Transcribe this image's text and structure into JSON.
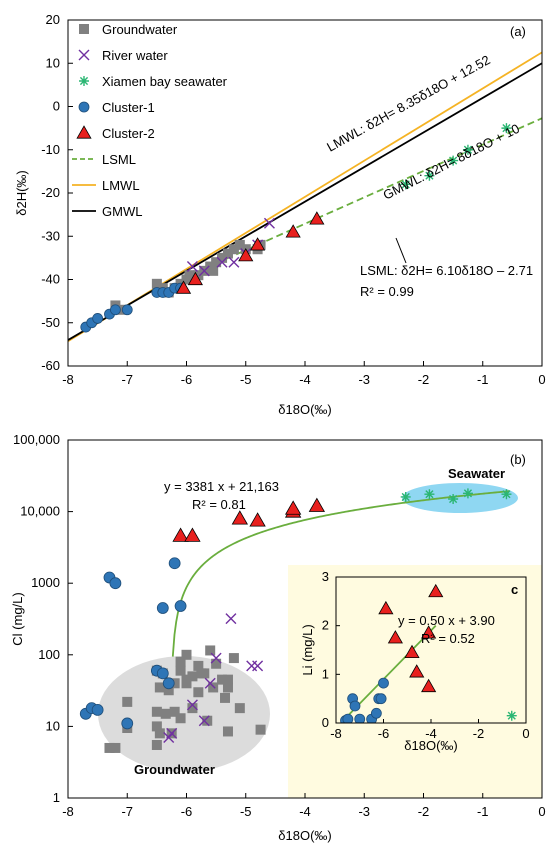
{
  "chart_data": [
    {
      "type": "scatter",
      "panel_label": "(a)",
      "xlabel": "δ18O(‰)",
      "ylabel": "δ2H(‰)",
      "xlim": [
        -8,
        0
      ],
      "ylim": [
        -60,
        20
      ],
      "xticks": [
        "-8",
        "-7",
        "-6",
        "-5",
        "-4",
        "-3",
        "-2",
        "-1",
        "0"
      ],
      "yticks": [
        "-60",
        "-50",
        "-40",
        "-30",
        "-20",
        "-10",
        "0",
        "10",
        "20"
      ],
      "legend_position": "top-left",
      "legend": [
        {
          "name": "Groundwater",
          "marker": "square",
          "color": "#808080"
        },
        {
          "name": "River water",
          "marker": "x",
          "color": "#7030A0"
        },
        {
          "name": "Xiamen bay seawater",
          "marker": "star",
          "color": "#2BB673"
        },
        {
          "name": "Cluster-1",
          "marker": "circle",
          "color": "#2E75B6"
        },
        {
          "name": "Cluster-2",
          "marker": "triangle",
          "color": "#E8201E"
        },
        {
          "name": "LSML",
          "line": "dashed",
          "color": "#6AAE3E"
        },
        {
          "name": "LMWL",
          "line": "solid",
          "color": "#F5B324"
        },
        {
          "name": "GMWL",
          "line": "solid",
          "color": "#000000"
        }
      ],
      "lines": [
        {
          "name": "LMWL",
          "slope": 8.35,
          "intercept": 12.52,
          "x_range": [
            -8,
            0
          ],
          "color": "#F5B324"
        },
        {
          "name": "GMWL",
          "slope": 8,
          "intercept": 10,
          "x_range": [
            -8,
            0
          ],
          "color": "#000000"
        },
        {
          "name": "LSML",
          "slope": 6.1,
          "intercept": -2.71,
          "x_range": [
            -5.5,
            0
          ],
          "color": "#6AAE3E"
        }
      ],
      "annotations": {
        "lmwl": "LMWL: δ2H= 8.35δ18O + 12.52",
        "gmwl": "GMWL: δ2H= 8δ18O + 10",
        "lsml": "LSML: δ2H= 6.10δ18O – 2.71",
        "lsml_r2": "R² = 0.99"
      },
      "series": [
        {
          "name": "Groundwater",
          "points": [
            [
              -7.2,
              -46
            ],
            [
              -7.1,
              -47
            ],
            [
              -6.5,
              -41
            ],
            [
              -6.4,
              -42
            ],
            [
              -6.3,
              -43
            ],
            [
              -6.2,
              -42
            ],
            [
              -6.1,
              -41
            ],
            [
              -6.0,
              -40
            ],
            [
              -5.95,
              -39
            ],
            [
              -5.9,
              -40
            ],
            [
              -5.8,
              -39
            ],
            [
              -5.7,
              -38
            ],
            [
              -5.6,
              -37
            ],
            [
              -5.55,
              -38
            ],
            [
              -5.5,
              -36
            ],
            [
              -5.4,
              -35
            ],
            [
              -5.3,
              -34
            ],
            [
              -5.2,
              -33
            ],
            [
              -5.1,
              -32
            ],
            [
              -5.0,
              -33
            ],
            [
              -4.8,
              -33
            ],
            [
              -4.75,
              -32
            ]
          ]
        },
        {
          "name": "River water",
          "points": [
            [
              -5.9,
              -37
            ],
            [
              -5.7,
              -38
            ],
            [
              -5.4,
              -36
            ],
            [
              -5.2,
              -36
            ],
            [
              -5.0,
              -34
            ],
            [
              -4.8,
              -32
            ],
            [
              -4.6,
              -27
            ]
          ]
        },
        {
          "name": "Xiamen bay seawater",
          "points": [
            [
              -2.3,
              -18
            ],
            [
              -1.9,
              -16
            ],
            [
              -1.5,
              -12.5
            ],
            [
              -1.25,
              -10
            ],
            [
              -0.6,
              -5
            ]
          ]
        },
        {
          "name": "Cluster-1",
          "points": [
            [
              -7.7,
              -51
            ],
            [
              -7.6,
              -50
            ],
            [
              -7.5,
              -49
            ],
            [
              -7.3,
              -48
            ],
            [
              -7.2,
              -47
            ],
            [
              -7.0,
              -47
            ],
            [
              -6.5,
              -43
            ],
            [
              -6.4,
              -43
            ],
            [
              -6.3,
              -43
            ],
            [
              -6.2,
              -42
            ],
            [
              -6.1,
              -42
            ]
          ]
        },
        {
          "name": "Cluster-2",
          "points": [
            [
              -6.05,
              -42
            ],
            [
              -5.85,
              -40
            ],
            [
              -5.0,
              -34.5
            ],
            [
              -4.8,
              -32
            ],
            [
              -4.2,
              -29
            ],
            [
              -3.8,
              -26
            ]
          ]
        }
      ]
    },
    {
      "type": "scatter",
      "panel_label": "(b)",
      "xlabel": "δ18O(‰)",
      "ylabel": "Cl (mg/L)",
      "xlim": [
        -8,
        0
      ],
      "ylim": [
        1,
        100000
      ],
      "y_scale": "log",
      "xticks": [
        "-8",
        "-7",
        "-6",
        "-5",
        "-4",
        "-3",
        "-2",
        "-1",
        "0"
      ],
      "yticks": [
        "1",
        "10",
        "100",
        "1000",
        "10,000",
        "100,000"
      ],
      "fit_label": "y = 3381 x + 21,163",
      "fit_r2": "R² = 0.81",
      "region_labels": {
        "seawater": "Seawater",
        "groundwater": "Groundwater"
      },
      "series": [
        {
          "name": "Groundwater",
          "points": [
            [
              -6.1,
              60
            ],
            [
              -6.2,
              40
            ],
            [
              -6.0,
              45
            ],
            [
              -5.8,
              70
            ],
            [
              -5.7,
              55
            ],
            [
              -5.6,
              115
            ],
            [
              -5.5,
              75
            ],
            [
              -5.4,
              45
            ],
            [
              -5.3,
              35
            ],
            [
              -5.2,
              90
            ],
            [
              -5.1,
              18
            ],
            [
              -6.5,
              60
            ],
            [
              -6.4,
              55
            ],
            [
              -6.3,
              32
            ],
            [
              -6.35,
              15
            ],
            [
              -6.2,
              16
            ],
            [
              -6.1,
              13
            ],
            [
              -5.9,
              18
            ],
            [
              -5.8,
              30
            ],
            [
              -6.0,
              100
            ],
            [
              -5.9,
              50
            ],
            [
              -5.75,
              55
            ],
            [
              -5.55,
              35
            ],
            [
              -5.3,
              45
            ],
            [
              -5.35,
              25
            ],
            [
              -6.45,
              35
            ],
            [
              -6.5,
              10
            ],
            [
              -6.5,
              5.5
            ],
            [
              -6.45,
              8
            ],
            [
              -6.25,
              8
            ],
            [
              -6.1,
              80
            ],
            [
              -5.65,
              12
            ],
            [
              -4.75,
              9
            ],
            [
              -5.3,
              8.5
            ],
            [
              -7.2,
              5
            ],
            [
              -7.3,
              5
            ],
            [
              -7.0,
              22
            ],
            [
              -7.0,
              9.5
            ],
            [
              -6.0,
              40
            ],
            [
              -6.5,
              16
            ]
          ]
        },
        {
          "name": "River water",
          "points": [
            [
              -6.3,
              7
            ],
            [
              -6.25,
              8
            ],
            [
              -5.9,
              20
            ],
            [
              -5.7,
              12
            ],
            [
              -5.6,
              40
            ],
            [
              -5.5,
              90
            ],
            [
              -5.25,
              320
            ],
            [
              -4.9,
              70
            ],
            [
              -4.8,
              70
            ]
          ]
        },
        {
          "name": "Xiamen bay seawater",
          "points": [
            [
              -2.3,
              16000
            ],
            [
              -1.9,
              17500
            ],
            [
              -1.5,
              15000
            ],
            [
              -1.25,
              18000
            ],
            [
              -0.6,
              17500
            ]
          ]
        },
        {
          "name": "Cluster-1",
          "points": [
            [
              -7.3,
              1200
            ],
            [
              -7.2,
              1000
            ],
            [
              -6.4,
              450
            ],
            [
              -6.1,
              480
            ],
            [
              -6.2,
              1900
            ],
            [
              -6.5,
              60
            ],
            [
              -6.4,
              55
            ],
            [
              -7.7,
              15
            ],
            [
              -7.6,
              18
            ],
            [
              -7.5,
              17
            ],
            [
              -7.0,
              11
            ],
            [
              -6.3,
              40
            ]
          ]
        },
        {
          "name": "Cluster-2",
          "points": [
            [
              -6.1,
              4600
            ],
            [
              -5.9,
              4600
            ],
            [
              -5.1,
              8000
            ],
            [
              -4.8,
              7500
            ],
            [
              -4.2,
              10000
            ],
            [
              -4.2,
              11000
            ],
            [
              -3.8,
              12000
            ]
          ]
        }
      ],
      "inset": {
        "label": "c",
        "xlabel": "δ18O(‰)",
        "ylabel": "Li (mg/L)",
        "xlim": [
          -8,
          0
        ],
        "ylim": [
          0,
          3
        ],
        "xticks": [
          "-8",
          "-6",
          "-4",
          "-2",
          "0"
        ],
        "yticks": [
          "0",
          "1",
          "2",
          "3"
        ],
        "fit_label": "y = 0.50 x + 3.90",
        "fit_r2": "R² = 0.52",
        "series": [
          {
            "name": "Cluster-1",
            "points": [
              [
                -7.6,
                0.05
              ],
              [
                -7.5,
                0.08
              ],
              [
                -7.3,
                0.5
              ],
              [
                -7.2,
                0.35
              ],
              [
                -7.0,
                0.08
              ],
              [
                -6.5,
                0.08
              ],
              [
                -6.3,
                0.2
              ],
              [
                -6.2,
                0.5
              ],
              [
                -6.1,
                0.5
              ],
              [
                -6.0,
                0.82
              ]
            ]
          },
          {
            "name": "Cluster-2",
            "points": [
              [
                -5.9,
                2.35
              ],
              [
                -5.5,
                1.75
              ],
              [
                -4.8,
                1.45
              ],
              [
                -4.6,
                1.05
              ],
              [
                -4.1,
                0.75
              ],
              [
                -4.1,
                1.85
              ],
              [
                -3.8,
                2.7
              ]
            ]
          },
          {
            "name": "Xiamen bay seawater",
            "points": [
              [
                -0.6,
                0.15
              ]
            ]
          }
        ]
      }
    }
  ]
}
